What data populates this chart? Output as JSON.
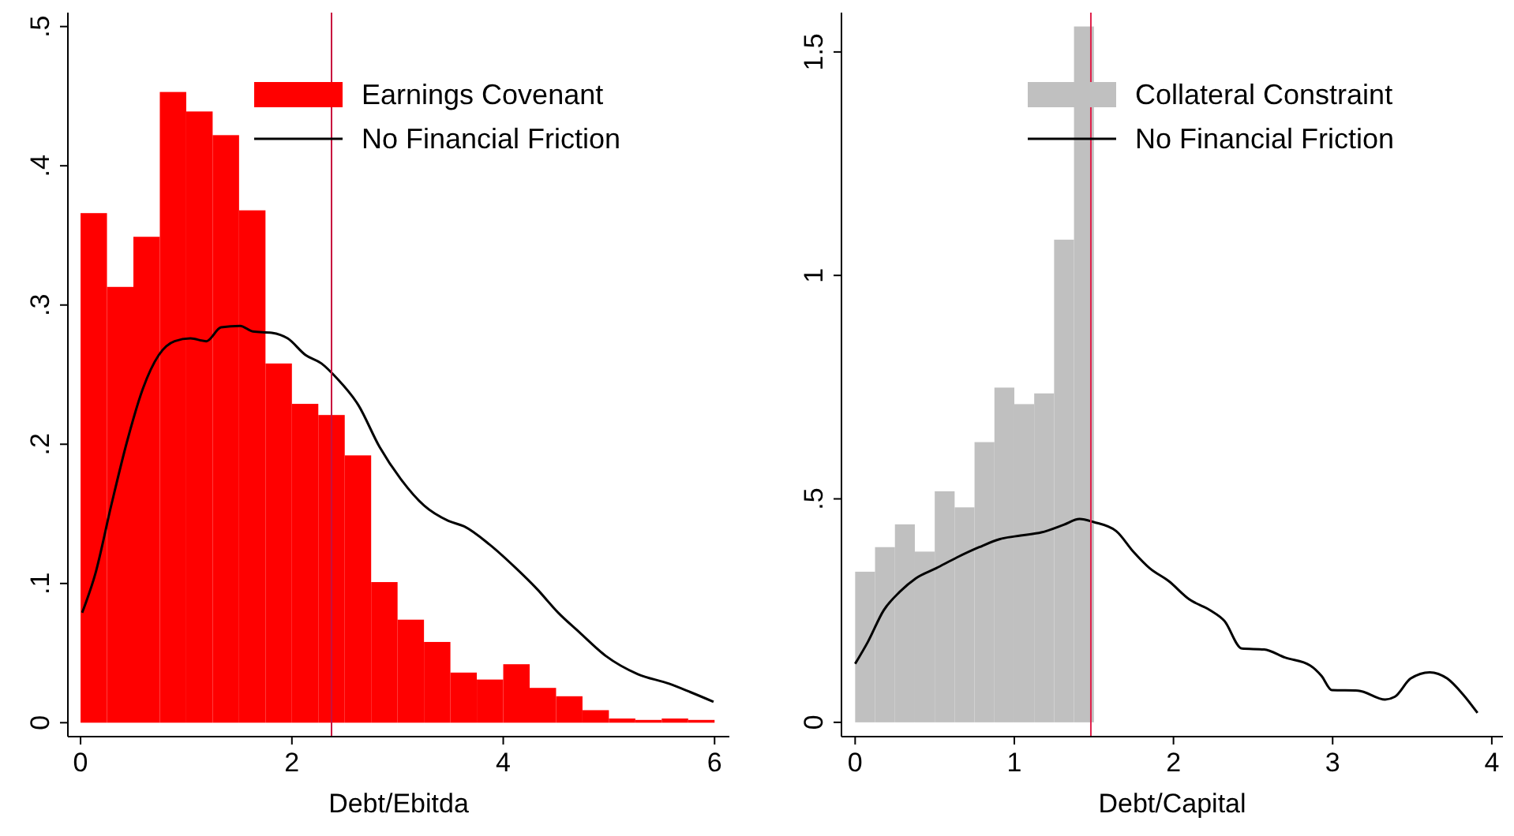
{
  "chart_data": [
    {
      "type": "histogram",
      "xlabel": "Debt/Ebitda",
      "xlim": [
        -0.12,
        6.14
      ],
      "ylim": [
        -0.01,
        0.51
      ],
      "xticks": [
        0,
        2,
        4,
        6
      ],
      "yticks": [
        0,
        {
          "value": 0.1,
          "label": ".1"
        },
        {
          "value": 0.2,
          "label": ".2"
        },
        {
          "value": 0.3,
          "label": ".3"
        },
        {
          "value": 0.4,
          "label": ".4"
        },
        {
          "value": 0.5,
          "label": ".5"
        }
      ],
      "grid": false,
      "legend": "top right",
      "bins": [
        0,
        0.25,
        0.5,
        0.75,
        1,
        1.25,
        1.5,
        1.75,
        2,
        2.25,
        2.5,
        2.75,
        3,
        3.25,
        3.5,
        3.75,
        4,
        4.25,
        4.5,
        4.75,
        5,
        5.25,
        5.5,
        5.75,
        6
      ],
      "series": [
        {
          "name": "Earnings Covenant",
          "color": "#ff0000",
          "values": [
            0.366,
            0.313,
            0.349,
            0.453,
            0.439,
            0.422,
            0.368,
            0.258,
            0.229,
            0.221,
            0.192,
            0.101,
            0.074,
            0.058,
            0.036,
            0.031,
            0.042,
            0.025,
            0.019,
            0.009,
            0.003,
            0.002,
            0.003,
            0.002
          ]
        },
        {
          "name": "No Financial Friction",
          "type": "line",
          "color": "#000000",
          "x": [
            0.015,
            0.14,
            0.29,
            0.44,
            0.59,
            0.74,
            0.89,
            1.04,
            1.19,
            1.33,
            1.51,
            1.63,
            1.81,
            1.96,
            2.13,
            2.28,
            2.43,
            2.63,
            2.83,
            3.03,
            3.25,
            3.48,
            3.63,
            3.87,
            4.12,
            4.32,
            4.52,
            4.72,
            4.97,
            5.27,
            5.57,
            5.77,
            5.99
          ],
          "values": [
            0.079,
            0.107,
            0.156,
            0.202,
            0.24,
            0.264,
            0.274,
            0.276,
            0.274,
            0.284,
            0.285,
            0.281,
            0.28,
            0.276,
            0.264,
            0.258,
            0.247,
            0.228,
            0.198,
            0.175,
            0.156,
            0.145,
            0.141,
            0.128,
            0.111,
            0.096,
            0.079,
            0.065,
            0.048,
            0.035,
            0.028,
            0.022,
            0.015
          ]
        }
      ],
      "ref_lines": [
        {
          "axis": "x",
          "value": 2.375,
          "color": "#c8103e"
        }
      ]
    },
    {
      "type": "histogram",
      "xlabel": "Debt/Capital",
      "xlim": [
        -0.086,
        4.07
      ],
      "ylim": [
        -0.032,
        1.588
      ],
      "xticks": [
        0,
        1,
        2,
        3,
        4
      ],
      "yticks": [
        0,
        {
          "value": 0.5,
          "label": ".5"
        },
        1,
        1.5
      ],
      "grid": false,
      "legend": "top right",
      "bins": [
        0,
        0.125,
        0.25,
        0.375,
        0.5,
        0.625,
        0.75,
        0.875,
        1,
        1.125,
        1.25,
        1.375,
        1.5
      ],
      "series": [
        {
          "name": "Collateral Constraint",
          "color": "#c0c0c0",
          "values": [
            0.337,
            0.392,
            0.443,
            0.382,
            0.517,
            0.481,
            0.627,
            0.749,
            0.712,
            0.736,
            1.08,
            1.557
          ]
        },
        {
          "name": "No Financial Friction",
          "type": "line",
          "color": "#000000",
          "x": [
            0,
            0.08,
            0.18,
            0.28,
            0.38,
            0.51,
            0.64,
            0.78,
            0.91,
            1.04,
            1.17,
            1.31,
            1.41,
            1.5,
            1.64,
            1.75,
            1.85,
            1.97,
            2.1,
            2.23,
            2.32,
            2.43,
            2.57,
            2.7,
            2.86,
            2.93,
            2.995,
            3.16,
            3.33,
            3.39,
            3.49,
            3.61,
            3.72,
            3.82,
            3.91
          ],
          "values": [
            0.131,
            0.18,
            0.251,
            0.292,
            0.322,
            0.345,
            0.369,
            0.392,
            0.41,
            0.418,
            0.425,
            0.442,
            0.455,
            0.448,
            0.428,
            0.381,
            0.345,
            0.316,
            0.275,
            0.251,
            0.227,
            0.165,
            0.163,
            0.145,
            0.127,
            0.104,
            0.072,
            0.071,
            0.051,
            0.057,
            0.098,
            0.112,
            0.098,
            0.062,
            0.021
          ]
        }
      ],
      "ref_lines": [
        {
          "axis": "x",
          "value": 1.481,
          "color": "#e0204a"
        }
      ]
    }
  ]
}
